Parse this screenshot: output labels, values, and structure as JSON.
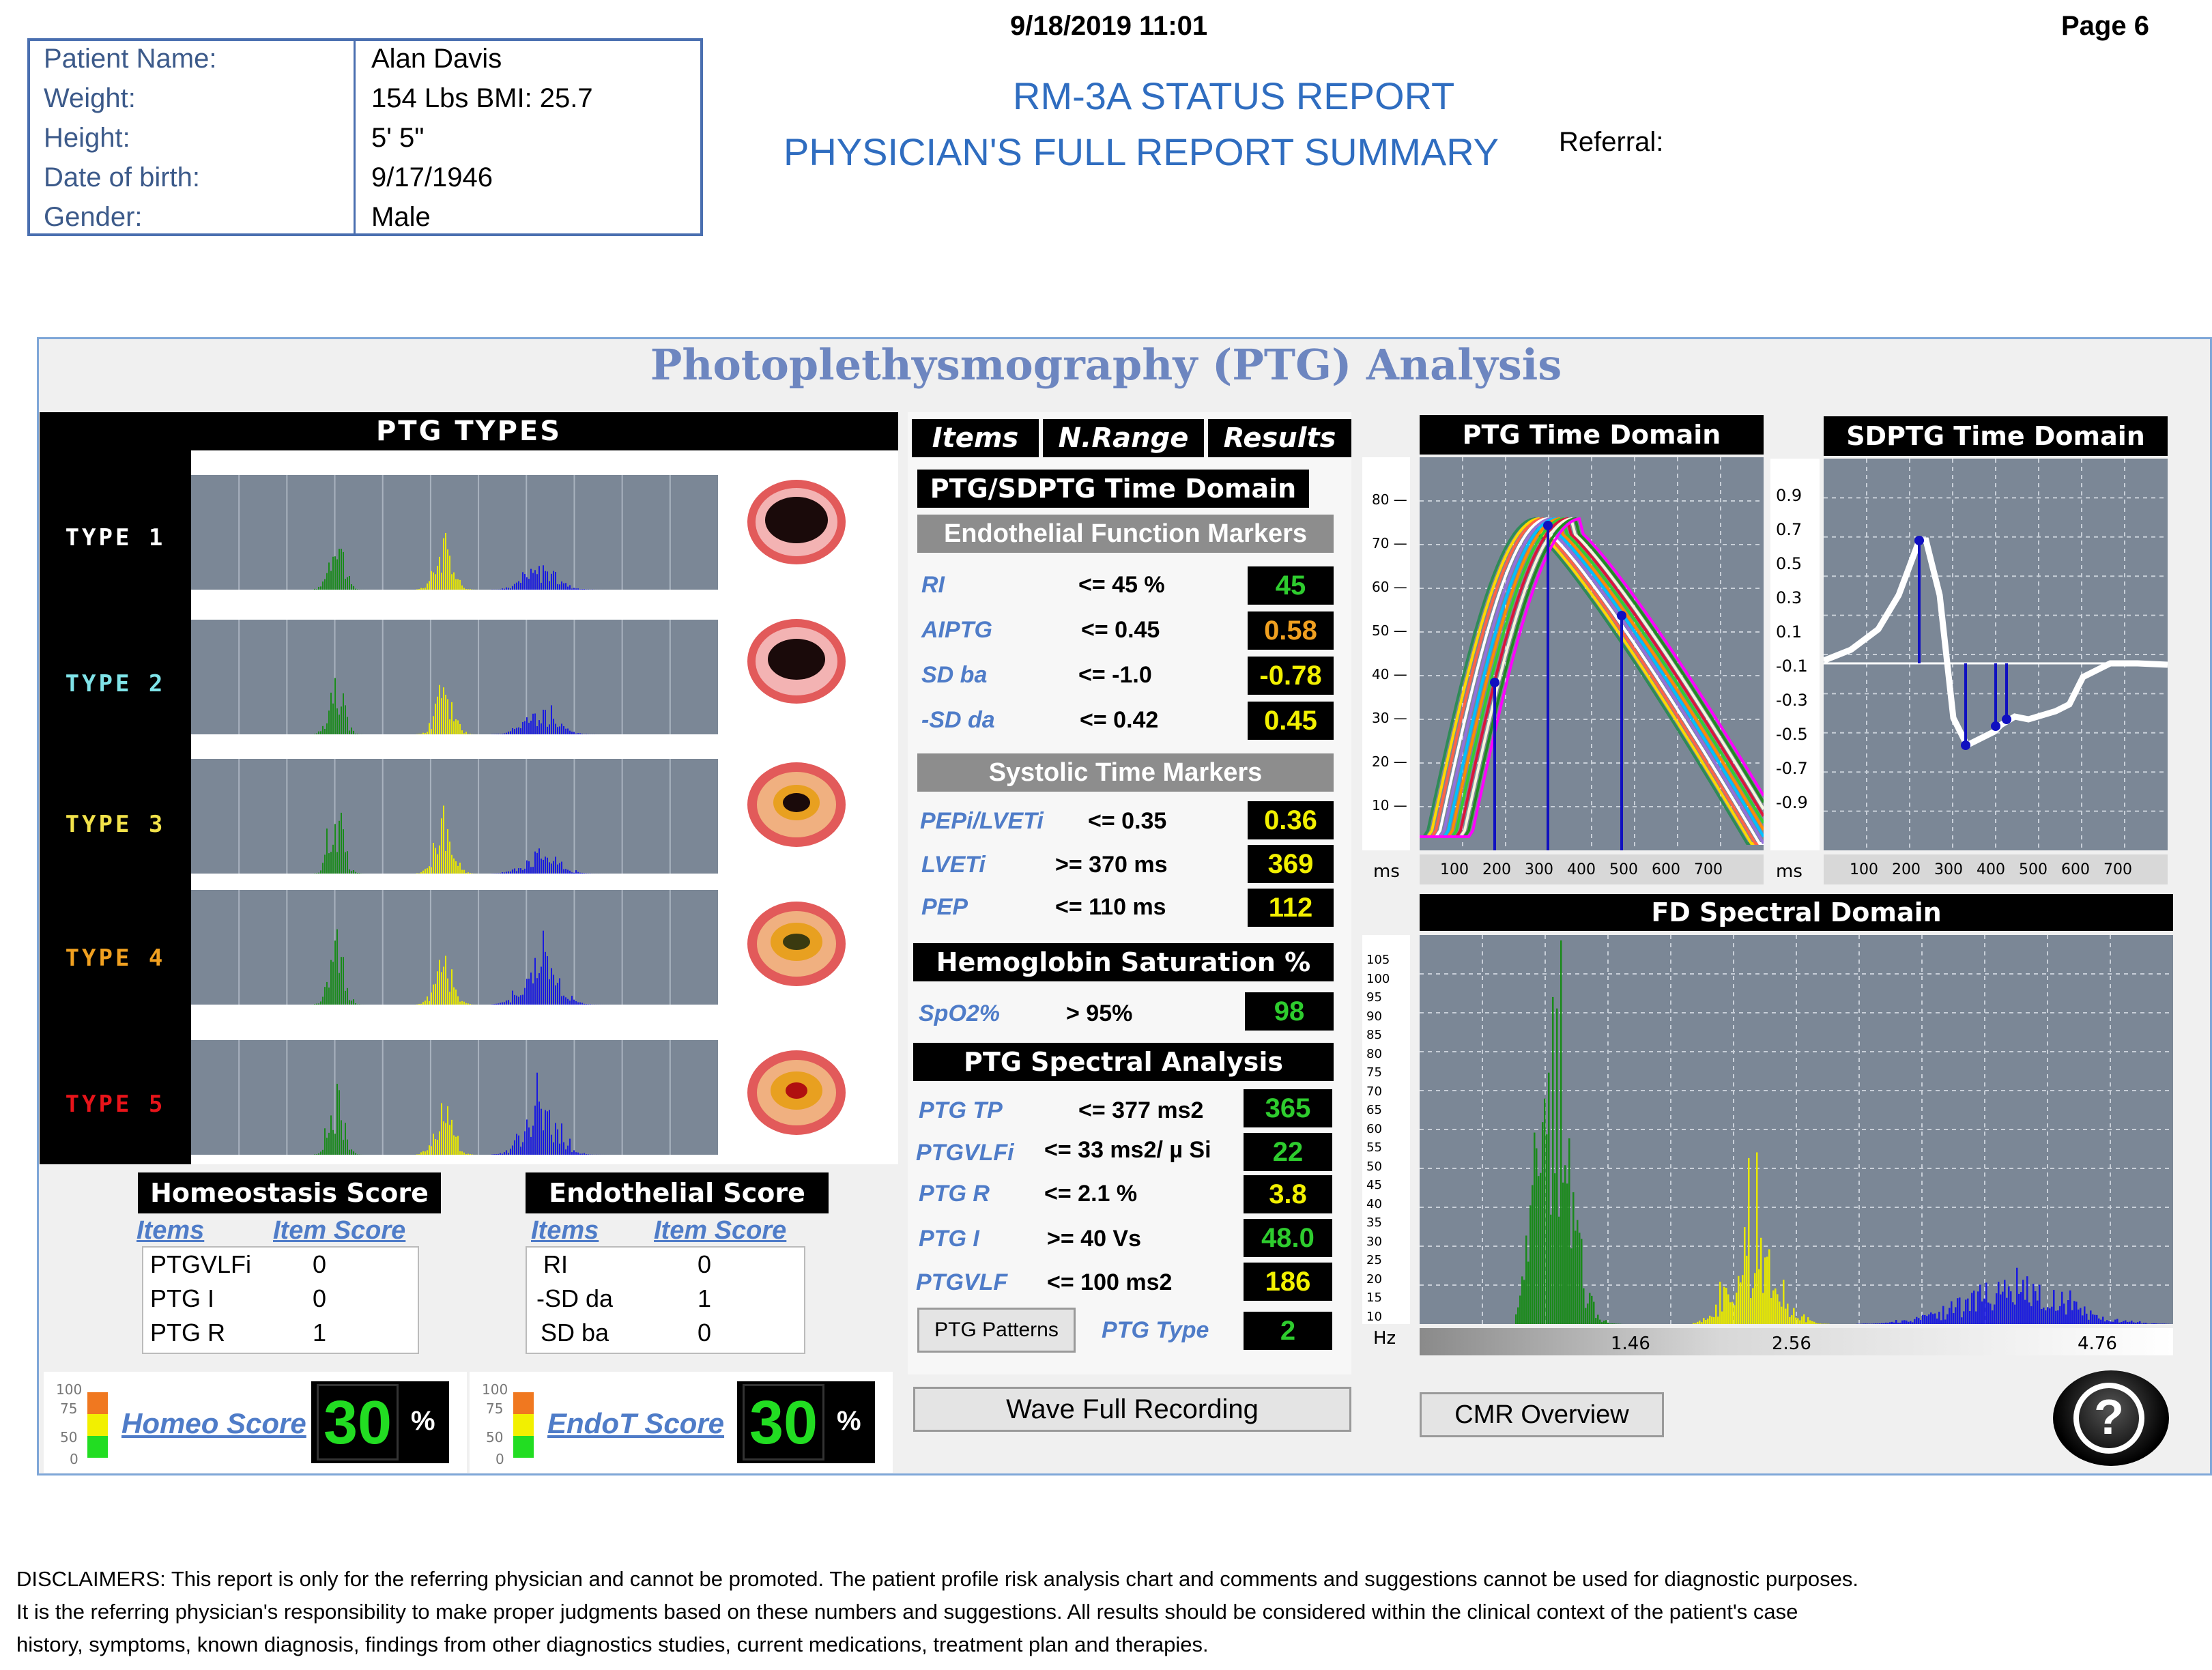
{
  "header": {
    "datetime": "9/18/2019  11:01",
    "page": "Page 6",
    "title_line1": "RM-3A STATUS REPORT",
    "title_line2": "PHYSICIAN'S FULL REPORT SUMMARY",
    "referral_label": "Referral:"
  },
  "patient": [
    {
      "label": "Patient Name:",
      "value": "Alan Davis"
    },
    {
      "label": "Weight:",
      "value": "154 Lbs   BMI: 25.7"
    },
    {
      "label": "Height:",
      "value": "5'  5\""
    },
    {
      "label": "Date of birth:",
      "value": "9/17/1946"
    },
    {
      "label": "Gender:",
      "value": "Male"
    }
  ],
  "panel_title": "Photoplethysmography (PTG) Analysis",
  "ptg_types": {
    "title": "PTG TYPES",
    "types": [
      {
        "label": "TYPE 1",
        "color": "#ffffff"
      },
      {
        "label": "TYPE 2",
        "color": "#7fe3e8"
      },
      {
        "label": "TYPE 3",
        "color": "#f2e24a"
      },
      {
        "label": "TYPE 4",
        "color": "#f0a020"
      },
      {
        "label": "TYPE 5",
        "color": "#e8141a"
      }
    ]
  },
  "table": {
    "headers": [
      "Items",
      "N.Range",
      "Results"
    ],
    "time_domain_title": "PTG/SDPTG Time Domain",
    "endothelial_title": "Endothelial Function Markers",
    "endothelial": [
      {
        "item": "RI",
        "range": "<= 45 %",
        "result": "45",
        "color": "#2ecc2e"
      },
      {
        "item": "AIPTG",
        "range": "<= 0.45",
        "result": "0.58",
        "color": "#f0a020"
      },
      {
        "item": "SD ba",
        "range": "<= -1.0",
        "result": "-0.78",
        "color": "#f2f000"
      },
      {
        "item": "-SD da",
        "range": "<= 0.42",
        "result": "0.45",
        "color": "#f2f000"
      }
    ],
    "systolic_title": "Systolic Time Markers",
    "systolic": [
      {
        "item": "PEPi/LVETi",
        "range": "<= 0.35",
        "result": "0.36",
        "color": "#f2f000"
      },
      {
        "item": "LVETi",
        "range": ">= 370 ms",
        "result": "369",
        "color": "#f2f000"
      },
      {
        "item": "PEP",
        "range": "<= 110 ms",
        "result": "112",
        "color": "#f2f000"
      }
    ],
    "hemo_title": "Hemoglobin Saturation %",
    "hemo": [
      {
        "item": "SpO2%",
        "range": "> 95%",
        "result": "98",
        "color": "#2ecc2e"
      }
    ],
    "spectral_title": "PTG Spectral Analysis",
    "spectral": [
      {
        "item": "PTG TP",
        "range": "<= 377 ms2",
        "result": "365",
        "color": "#2ecc2e"
      },
      {
        "item": "PTGVLFi",
        "range": "<= 33 ms2/ µ Si",
        "result": "22",
        "color": "#2ecc2e"
      },
      {
        "item": "PTG R",
        "range": "<= 2.1 %",
        "result": "3.8",
        "color": "#f2f000"
      },
      {
        "item": "PTG I",
        "range": ">= 40 Vs",
        "result": "48.0",
        "color": "#2ecc2e"
      },
      {
        "item": "PTGVLF",
        "range": "<= 100 ms2",
        "result": "186",
        "color": "#f2f000"
      }
    ],
    "patterns_button": "PTG Patterns",
    "ptg_type_label": "PTG Type",
    "ptg_type_value": "2"
  },
  "homeostasis": {
    "title": "Homeostasis Score",
    "col_items": "Items",
    "col_score": "Item Score",
    "rows": [
      {
        "item": "PTGVLFi",
        "score": "0"
      },
      {
        "item": "PTG I",
        "score": "0"
      },
      {
        "item": "PTG R",
        "score": "1"
      }
    ],
    "score_label": "Homeo Score",
    "score_value": "30",
    "percent": "%"
  },
  "endothelial_score": {
    "title": "Endothelial Score",
    "col_items": "Items",
    "col_score": "Item Score",
    "rows": [
      {
        "item": "RI",
        "score": "0"
      },
      {
        "item": "-SD da",
        "score": "1"
      },
      {
        "item": "SD ba",
        "score": "0"
      }
    ],
    "score_label": "EndoT Score",
    "score_value": "30",
    "percent": "%"
  },
  "gauge_ticks": [
    "100",
    "75",
    "50",
    "0"
  ],
  "buttons": {
    "wave": "Wave Full Recording",
    "cmr": "CMR Overview",
    "help": "?"
  },
  "ptg_time_domain": {
    "title": "PTG Time Domain",
    "unit": "ms",
    "yticks": [
      "80",
      "70",
      "60",
      "50",
      "40",
      "30",
      "20",
      "10"
    ],
    "xticks": [
      "100",
      "200",
      "300",
      "400",
      "500",
      "600",
      "700"
    ]
  },
  "sdptg_time_domain": {
    "title": "SDPTG Time Domain",
    "unit": "ms",
    "yticks": [
      "0.9",
      "0.7",
      "0.5",
      "0.3",
      "0.1",
      "-0.1",
      "-0.3",
      "-0.5",
      "-0.7",
      "-0.9"
    ],
    "xticks": [
      "100",
      "200",
      "300",
      "400",
      "500",
      "600",
      "700"
    ]
  },
  "fd_spectral": {
    "title": "FD Spectral Domain",
    "unit": "Hz",
    "yticks": [
      "105",
      "100",
      "95",
      "90",
      "85",
      "80",
      "75",
      "70",
      "65",
      "60",
      "55",
      "50",
      "45",
      "40",
      "35",
      "30",
      "25",
      "20",
      "15",
      "10"
    ],
    "xticks": [
      "1.46",
      "2.56",
      "4.76"
    ]
  },
  "disclaimer": [
    "DISCLAIMERS: This report is only for the referring physician and cannot be promoted. The patient profile risk analysis chart and comments and suggestions cannot be used for diagnostic purposes.",
    "It is the referring physician's responsibility to make proper judgments based on these numbers and suggestions. All results should be considered within the clinical context of the patient's case",
    "history, symptoms, known diagnosis, findings from other diagnostics studies, current medications, treatment plan and therapies."
  ]
}
